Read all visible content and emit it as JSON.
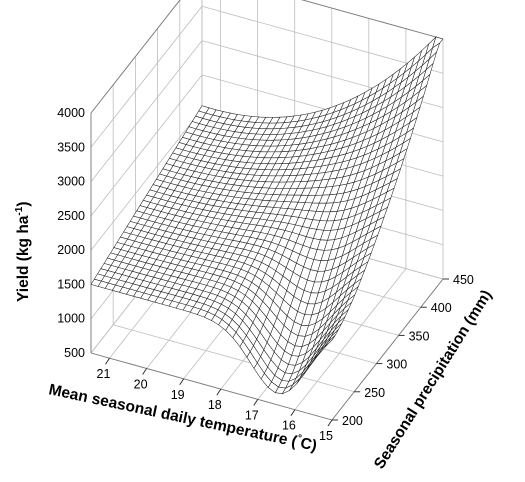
{
  "chart_data": {
    "type": "surface",
    "title": "",
    "xlabel": "Mean seasonal daily temperature (",
    "xlabel_symbol": "°",
    "xlabel_unit": "C)",
    "ylabel": "Seasonal precipitation (mm)",
    "zlabel": "Yield (kg ha",
    "zlabel_exp": "-1",
    "zlabel_end": ")",
    "x_ticks": [
      "21",
      "20",
      "19",
      "18",
      "17",
      "16",
      "15"
    ],
    "y_ticks": [
      "200",
      "250",
      "300",
      "350",
      "400",
      "450"
    ],
    "z_ticks": [
      "500",
      "1000",
      "1500",
      "2000",
      "2500",
      "3000",
      "3500",
      "4000"
    ],
    "xlim": [
      21.5,
      15
    ],
    "ylim": [
      200,
      450
    ],
    "zlim": [
      500,
      4000
    ],
    "grid": true,
    "surface_sample": {
      "note_points": [
        {
          "temperature": 21.5,
          "precipitation": 200,
          "yield": 1500
        },
        {
          "temperature": 21.5,
          "precipitation": 450,
          "yield": 2100
        },
        {
          "temperature": 17.5,
          "precipitation": 200,
          "yield": 1450
        },
        {
          "temperature": 16.5,
          "precipitation": 200,
          "yield": 800
        },
        {
          "temperature": 15,
          "precipitation": 200,
          "yield": 1400
        },
        {
          "temperature": 15,
          "precipitation": 450,
          "yield": 3700
        }
      ]
    },
    "colors": {
      "mesh_line": "#222222",
      "mesh_fill": "#ffffff",
      "grid": "#bdbdbd"
    }
  }
}
